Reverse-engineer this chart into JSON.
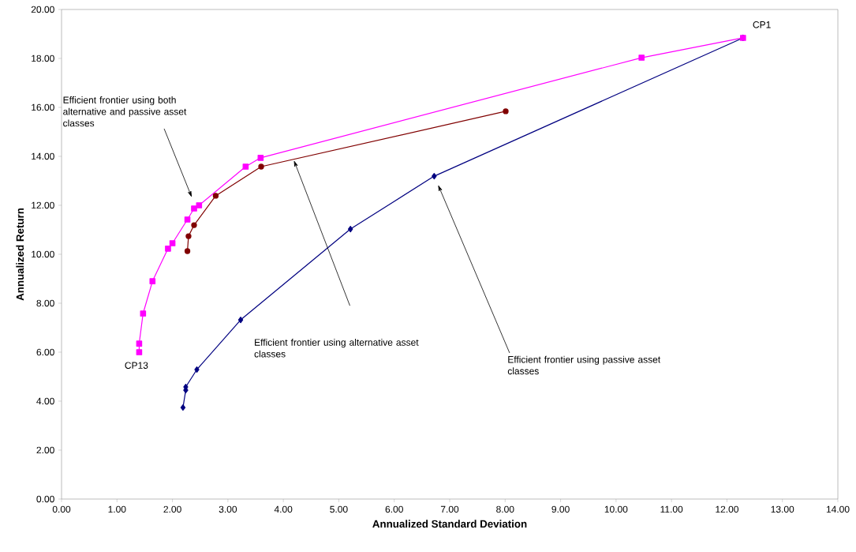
{
  "chart_data": {
    "type": "line",
    "xlabel": "Annualized Standard Deviation",
    "ylabel": "Annualized Return",
    "xlim": [
      0,
      14
    ],
    "ylim": [
      0,
      20
    ],
    "xticks": [
      {
        "value": 0,
        "label": "0.00"
      },
      {
        "value": 1,
        "label": "1.00"
      },
      {
        "value": 2,
        "label": "2.00"
      },
      {
        "value": 3,
        "label": "3.00"
      },
      {
        "value": 4,
        "label": "4.00"
      },
      {
        "value": 5,
        "label": "5.00"
      },
      {
        "value": 6,
        "label": "6.00"
      },
      {
        "value": 7,
        "label": "7.00"
      },
      {
        "value": 8,
        "label": "8.00"
      },
      {
        "value": 9,
        "label": "9.00"
      },
      {
        "value": 10,
        "label": "10.00"
      },
      {
        "value": 11,
        "label": "11.00"
      },
      {
        "value": 12,
        "label": "12.00"
      },
      {
        "value": 13,
        "label": "13.00"
      },
      {
        "value": 14,
        "label": "14.00"
      }
    ],
    "yticks": [
      {
        "value": 0,
        "label": "0.00"
      },
      {
        "value": 2,
        "label": "2.00"
      },
      {
        "value": 4,
        "label": "4.00"
      },
      {
        "value": 6,
        "label": "6.00"
      },
      {
        "value": 8,
        "label": "8.00"
      },
      {
        "value": 10,
        "label": "10.00"
      },
      {
        "value": 12,
        "label": "12.00"
      },
      {
        "value": 14,
        "label": "14.00"
      },
      {
        "value": 16,
        "label": "16.00"
      },
      {
        "value": 18,
        "label": "18.00"
      },
      {
        "value": 20,
        "label": "20.00"
      }
    ],
    "series": [
      {
        "color": "#000080",
        "marker": "diamond",
        "x": [
          12.29,
          6.72,
          5.21,
          3.23,
          2.44,
          2.24,
          2.24,
          2.19
        ],
        "values": [
          18.84,
          13.19,
          11.03,
          7.32,
          5.29,
          4.58,
          4.45,
          3.74
        ]
      },
      {
        "color": "#800000",
        "marker": "circle",
        "x": [
          8.01,
          3.6,
          2.78,
          2.39,
          2.29,
          2.27
        ],
        "values": [
          15.84,
          13.58,
          12.39,
          11.19,
          10.74,
          10.13
        ]
      },
      {
        "color": "#ff00ff",
        "marker": "square",
        "x": [
          12.29,
          10.46,
          3.59,
          3.32,
          2.48,
          2.39,
          2.27,
          2.0,
          1.92,
          1.64,
          1.47,
          1.4,
          1.4
        ],
        "values": [
          18.84,
          18.03,
          13.94,
          13.58,
          12.0,
          11.87,
          11.42,
          10.45,
          10.23,
          8.9,
          7.58,
          6.35,
          6.0
        ]
      }
    ],
    "annotations": [
      {
        "text": "CP1",
        "x": 12.29,
        "y": 18.84
      },
      {
        "text": "CP13",
        "x": 1.4,
        "y": 6.0
      },
      "Efficient frontier using both alternative and passive asset classes",
      "Efficient frontier using alternative asset classes",
      "Efficient frontier using passive asset classes"
    ]
  }
}
